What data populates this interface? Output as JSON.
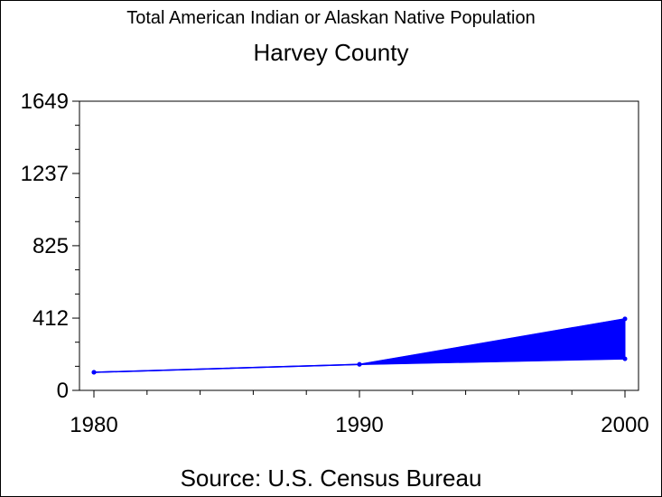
{
  "chart_data": {
    "type": "area",
    "title": "Total American Indian or Alaskan Native Population",
    "subtitle": "Harvey County",
    "source": "Source: U.S. Census Bureau",
    "x": [
      1980,
      1990,
      2000
    ],
    "xlim": [
      1980,
      2000
    ],
    "ylim": [
      0,
      1649
    ],
    "yticks": [
      0,
      412,
      825,
      1237,
      1649
    ],
    "xticks": [
      1980,
      1990,
      2000
    ],
    "series": [
      {
        "values": [
          103,
          148,
          408
        ]
      },
      {
        "values": [
          103,
          148,
          180
        ]
      }
    ],
    "fill_between_series": true,
    "color": "#0000ff",
    "grid": false
  }
}
